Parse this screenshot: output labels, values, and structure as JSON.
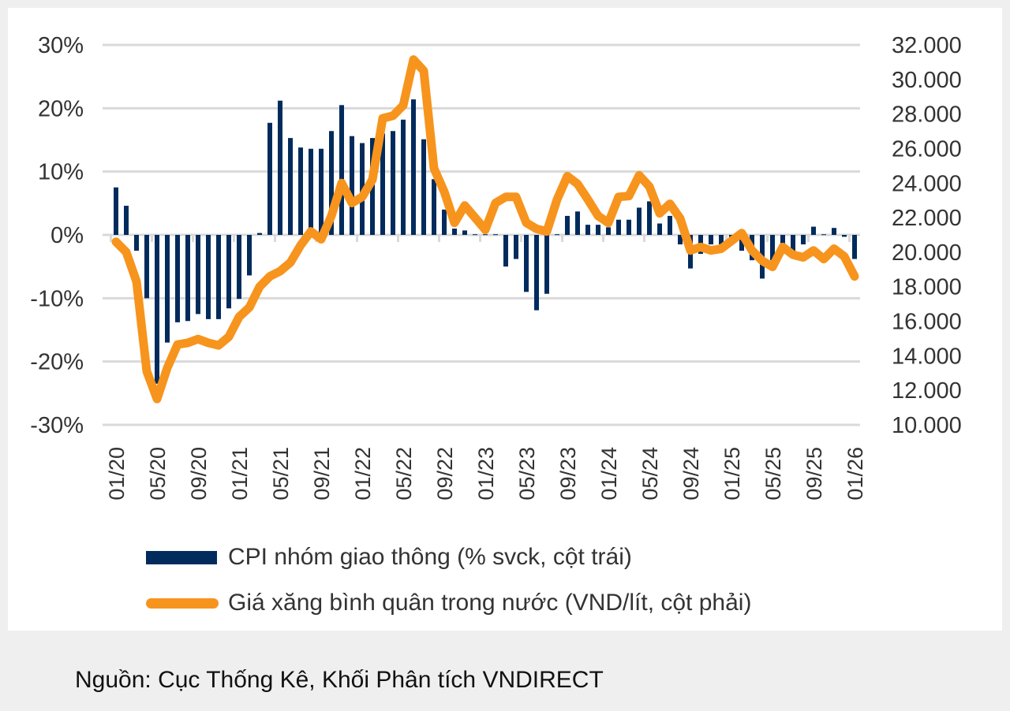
{
  "chart_data": {
    "type": "bar+line",
    "x": [
      "01/20",
      "02/20",
      "03/20",
      "04/20",
      "05/20",
      "06/20",
      "07/20",
      "08/20",
      "09/20",
      "10/20",
      "11/20",
      "12/20",
      "01/21",
      "02/21",
      "03/21",
      "04/21",
      "05/21",
      "06/21",
      "07/21",
      "08/21",
      "09/21",
      "10/21",
      "11/21",
      "12/21",
      "01/22",
      "02/22",
      "03/22",
      "04/22",
      "05/22",
      "06/22",
      "07/22",
      "08/22",
      "09/22",
      "10/22",
      "11/22",
      "12/22",
      "01/23",
      "02/23",
      "03/23",
      "04/23",
      "05/23",
      "06/23",
      "07/23",
      "08/23",
      "09/23",
      "10/23",
      "11/23",
      "12/23",
      "01/24",
      "02/24",
      "03/24",
      "04/24",
      "05/24",
      "06/24",
      "07/24",
      "08/24",
      "09/24",
      "10/24",
      "11/24",
      "12/24",
      "01/25",
      "02/25",
      "03/25",
      "04/25",
      "05/25",
      "06/25",
      "07/25",
      "08/25",
      "09/25",
      "10/25",
      "11/25",
      "12/25",
      "01/26"
    ],
    "x_tick_labels": [
      "01/20",
      "05/20",
      "09/20",
      "01/21",
      "05/21",
      "09/21",
      "01/22",
      "05/22",
      "09/22",
      "01/23",
      "05/23",
      "09/23",
      "01/24",
      "05/24",
      "09/24",
      "01/25",
      "05/25",
      "09/25",
      "01/26"
    ],
    "series": [
      {
        "name": "CPI nhóm giao thông (% svck, cột trái)",
        "type": "bar",
        "axis": "left",
        "color": "#002b5c",
        "values": [
          7.5,
          4.6,
          -2.5,
          -10.0,
          -23.5,
          -17.0,
          -13.8,
          -13.6,
          -12.5,
          -13.3,
          -13.3,
          -11.6,
          -10.1,
          -6.4,
          0.3,
          17.7,
          21.2,
          15.3,
          13.8,
          13.6,
          13.6,
          16.4,
          20.5,
          15.6,
          14.5,
          15.3,
          16.0,
          16.4,
          18.2,
          21.4,
          15.1,
          8.8,
          4.0,
          1.0,
          0.7,
          0.1,
          0.1,
          0.1,
          -5.0,
          -3.8,
          -9.0,
          -11.9,
          -9.3,
          0.1,
          3.0,
          3.7,
          1.6,
          1.6,
          1.2,
          2.4,
          2.4,
          4.3,
          5.3,
          1.8,
          3.0,
          -1.5,
          -5.3,
          -3.0,
          -1.5,
          -1.5,
          -0.5,
          -2.5,
          -4.0,
          -6.9,
          -4.0,
          -2.5,
          -3.0,
          -1.5,
          1.3,
          0.1,
          1.1,
          -0.3,
          -3.8
        ]
      },
      {
        "name": "Giá xăng bình quân trong nước (VND/lít, cột phải)",
        "type": "line",
        "axis": "right",
        "color": "#f7941d",
        "values": [
          20600,
          20000,
          18300,
          13100,
          11500,
          13300,
          14650,
          14750,
          14970,
          14750,
          14600,
          15100,
          16250,
          16800,
          18000,
          18600,
          18900,
          19400,
          20400,
          21200,
          20750,
          22100,
          24000,
          22850,
          23200,
          24200,
          27750,
          27900,
          28500,
          31150,
          30500,
          24850,
          23500,
          21700,
          22700,
          22000,
          21300,
          22850,
          23200,
          23200,
          21700,
          21350,
          21200,
          23050,
          24400,
          23950,
          23050,
          22100,
          21700,
          23200,
          23250,
          24450,
          23800,
          22250,
          22800,
          21950,
          20100,
          20300,
          20100,
          20200,
          20650,
          21100,
          20100,
          19500,
          19150,
          20300,
          19850,
          19700,
          20100,
          19600,
          20200,
          19750,
          18600
        ]
      }
    ],
    "y_left": {
      "range": [
        -30,
        30
      ],
      "ticks": [
        "30%",
        "20%",
        "10%",
        "0%",
        "-10%",
        "-20%",
        "-30%"
      ]
    },
    "y_right": {
      "range": [
        10000,
        32000
      ],
      "ticks": [
        "32.000",
        "30.000",
        "28.000",
        "26.000",
        "24.000",
        "22.000",
        "20.000",
        "18.000",
        "16.000",
        "14.000",
        "12.000",
        "10.000"
      ]
    },
    "grid": true,
    "legend_placement": "bottom"
  },
  "source": "Nguồn: Cục Thống Kê, Khối Phân tích VNDIRECT"
}
